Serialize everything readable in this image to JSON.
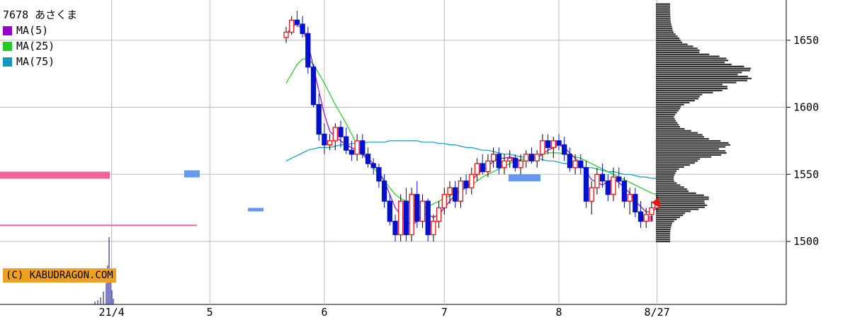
{
  "header": {
    "title": "7678 あさくま"
  },
  "legend": [
    {
      "label": "MA(5)",
      "color": "#9900cc"
    },
    {
      "label": "MA(25)",
      "color": "#22cc22"
    },
    {
      "label": "MA(75)",
      "color": "#1199bb"
    }
  ],
  "copyright": "(C) KABUDRAGON.COM",
  "colors": {
    "up": "#ee1111",
    "down": "#0011cc",
    "grid": "#bbbbbb",
    "volume_profile": "#333333",
    "marker": "#ee1111"
  },
  "chart_data": {
    "type": "candlestick",
    "ylim": [
      1453,
      1680
    ],
    "y_ticks": [
      1500,
      1550,
      1600,
      1650
    ],
    "x_ticks": [
      {
        "label": "21/4",
        "index": 8
      },
      {
        "label": "5",
        "index": 26
      },
      {
        "label": "6",
        "index": 47
      },
      {
        "label": "7",
        "index": 69
      },
      {
        "label": "8",
        "index": 90
      },
      {
        "label": "8/27",
        "index": 108
      }
    ],
    "candles": [
      [
        1652,
        1660,
        1648,
        1656
      ],
      [
        1656,
        1668,
        1654,
        1665
      ],
      [
        1665,
        1672,
        1660,
        1662
      ],
      [
        1662,
        1668,
        1652,
        1655
      ],
      [
        1655,
        1660,
        1625,
        1630
      ],
      [
        1630,
        1632,
        1600,
        1602
      ],
      [
        1602,
        1610,
        1575,
        1580
      ],
      [
        1580,
        1588,
        1565,
        1572
      ],
      [
        1572,
        1580,
        1568,
        1575
      ],
      [
        1575,
        1588,
        1568,
        1585
      ],
      [
        1585,
        1590,
        1570,
        1578
      ],
      [
        1578,
        1585,
        1565,
        1568
      ],
      [
        1568,
        1575,
        1560,
        1565
      ],
      [
        1565,
        1580,
        1560,
        1575
      ],
      [
        1575,
        1580,
        1562,
        1565
      ],
      [
        1565,
        1570,
        1555,
        1558
      ],
      [
        1558,
        1562,
        1550,
        1555
      ],
      [
        1555,
        1558,
        1540,
        1545
      ],
      [
        1545,
        1550,
        1525,
        1530
      ],
      [
        1530,
        1535,
        1512,
        1515
      ],
      [
        1515,
        1520,
        1500,
        1505
      ],
      [
        1505,
        1535,
        1500,
        1530
      ],
      [
        1530,
        1540,
        1500,
        1505
      ],
      [
        1505,
        1540,
        1500,
        1535
      ],
      [
        1535,
        1545,
        1510,
        1515
      ],
      [
        1515,
        1535,
        1510,
        1530
      ],
      [
        1530,
        1532,
        1500,
        1505
      ],
      [
        1505,
        1520,
        1500,
        1515
      ],
      [
        1515,
        1530,
        1510,
        1525
      ],
      [
        1525,
        1540,
        1520,
        1535
      ],
      [
        1535,
        1545,
        1528,
        1540
      ],
      [
        1540,
        1545,
        1525,
        1530
      ],
      [
        1530,
        1548,
        1525,
        1545
      ],
      [
        1545,
        1550,
        1535,
        1540
      ],
      [
        1540,
        1555,
        1535,
        1550
      ],
      [
        1550,
        1562,
        1545,
        1558
      ],
      [
        1558,
        1565,
        1550,
        1552
      ],
      [
        1552,
        1565,
        1548,
        1560
      ],
      [
        1560,
        1570,
        1555,
        1565
      ],
      [
        1565,
        1570,
        1550,
        1555
      ],
      [
        1555,
        1565,
        1550,
        1560
      ],
      [
        1560,
        1568,
        1555,
        1562
      ],
      [
        1562,
        1565,
        1552,
        1555
      ],
      [
        1555,
        1565,
        1550,
        1560
      ],
      [
        1560,
        1568,
        1555,
        1565
      ],
      [
        1565,
        1570,
        1558,
        1560
      ],
      [
        1560,
        1568,
        1555,
        1565
      ],
      [
        1565,
        1580,
        1560,
        1575
      ],
      [
        1575,
        1580,
        1565,
        1570
      ],
      [
        1570,
        1578,
        1562,
        1575
      ],
      [
        1575,
        1580,
        1568,
        1572
      ],
      [
        1572,
        1578,
        1560,
        1565
      ],
      [
        1565,
        1570,
        1552,
        1555
      ],
      [
        1555,
        1565,
        1550,
        1560
      ],
      [
        1560,
        1565,
        1550,
        1555
      ],
      [
        1555,
        1560,
        1525,
        1530
      ],
      [
        1530,
        1545,
        1520,
        1540
      ],
      [
        1540,
        1555,
        1535,
        1550
      ],
      [
        1550,
        1558,
        1540,
        1545
      ],
      [
        1545,
        1550,
        1530,
        1535
      ],
      [
        1535,
        1555,
        1530,
        1548
      ],
      [
        1548,
        1555,
        1540,
        1545
      ],
      [
        1545,
        1548,
        1525,
        1530
      ],
      [
        1530,
        1540,
        1520,
        1535
      ],
      [
        1535,
        1540,
        1518,
        1522
      ],
      [
        1522,
        1530,
        1510,
        1515
      ],
      [
        1515,
        1525,
        1510,
        1520
      ],
      [
        1520,
        1530,
        1515,
        1525
      ],
      [
        1525,
        1535,
        1522,
        1530
      ]
    ],
    "ma5": [
      1654,
      1660,
      1662,
      1658,
      1648,
      1630,
      1612,
      1595,
      1582,
      1578,
      1575,
      1572,
      1570,
      1568,
      1565,
      1562,
      1558,
      1552,
      1545,
      1535,
      1525,
      1520,
      1515,
      1512,
      1515,
      1520,
      1520,
      1518,
      1520,
      1525,
      1530,
      1535,
      1538,
      1540,
      1545,
      1550,
      1553,
      1556,
      1560,
      1562,
      1562,
      1563,
      1562,
      1560,
      1560,
      1562,
      1562,
      1565,
      1568,
      1570,
      1572,
      1570,
      1566,
      1562,
      1558,
      1552,
      1546,
      1544,
      1542,
      1545,
      1546,
      1544,
      1540,
      1536,
      1530,
      1526,
      1522,
      1522,
      1525
    ],
    "ma25": [
      1618,
      1625,
      1632,
      1636,
      1636,
      1632,
      1625,
      1618,
      1610,
      1602,
      1595,
      1588,
      1580,
      1572,
      1565,
      1560,
      1555,
      1550,
      1545,
      1540,
      1535,
      1532,
      1530,
      1528,
      1526,
      1525,
      1526,
      1528,
      1530,
      1532,
      1534,
      1536,
      1538,
      1540,
      1542,
      1545,
      1548,
      1550,
      1552,
      1554,
      1556,
      1558,
      1560,
      1561,
      1562,
      1563,
      1564,
      1565,
      1566,
      1566,
      1566,
      1565,
      1564,
      1563,
      1562,
      1560,
      1558,
      1556,
      1554,
      1552,
      1550,
      1548,
      1546,
      1544,
      1542,
      1540,
      1538,
      1536,
      1535
    ],
    "ma75": [
      1560,
      1562,
      1564,
      1566,
      1568,
      1569,
      1570,
      1570,
      1570,
      1571,
      1572,
      1572,
      1573,
      1573,
      1573,
      1574,
      1574,
      1574,
      1574,
      1575,
      1575,
      1575,
      1575,
      1575,
      1575,
      1574,
      1574,
      1574,
      1573,
      1573,
      1572,
      1572,
      1571,
      1570,
      1570,
      1569,
      1568,
      1568,
      1567,
      1566,
      1565,
      1565,
      1564,
      1563,
      1563,
      1562,
      1562,
      1561,
      1560,
      1560,
      1559,
      1558,
      1558,
      1557,
      1556,
      1555,
      1555,
      1554,
      1553,
      1552,
      1552,
      1551,
      1550,
      1550,
      1549,
      1548,
      1548,
      1547,
      1547
    ]
  }
}
